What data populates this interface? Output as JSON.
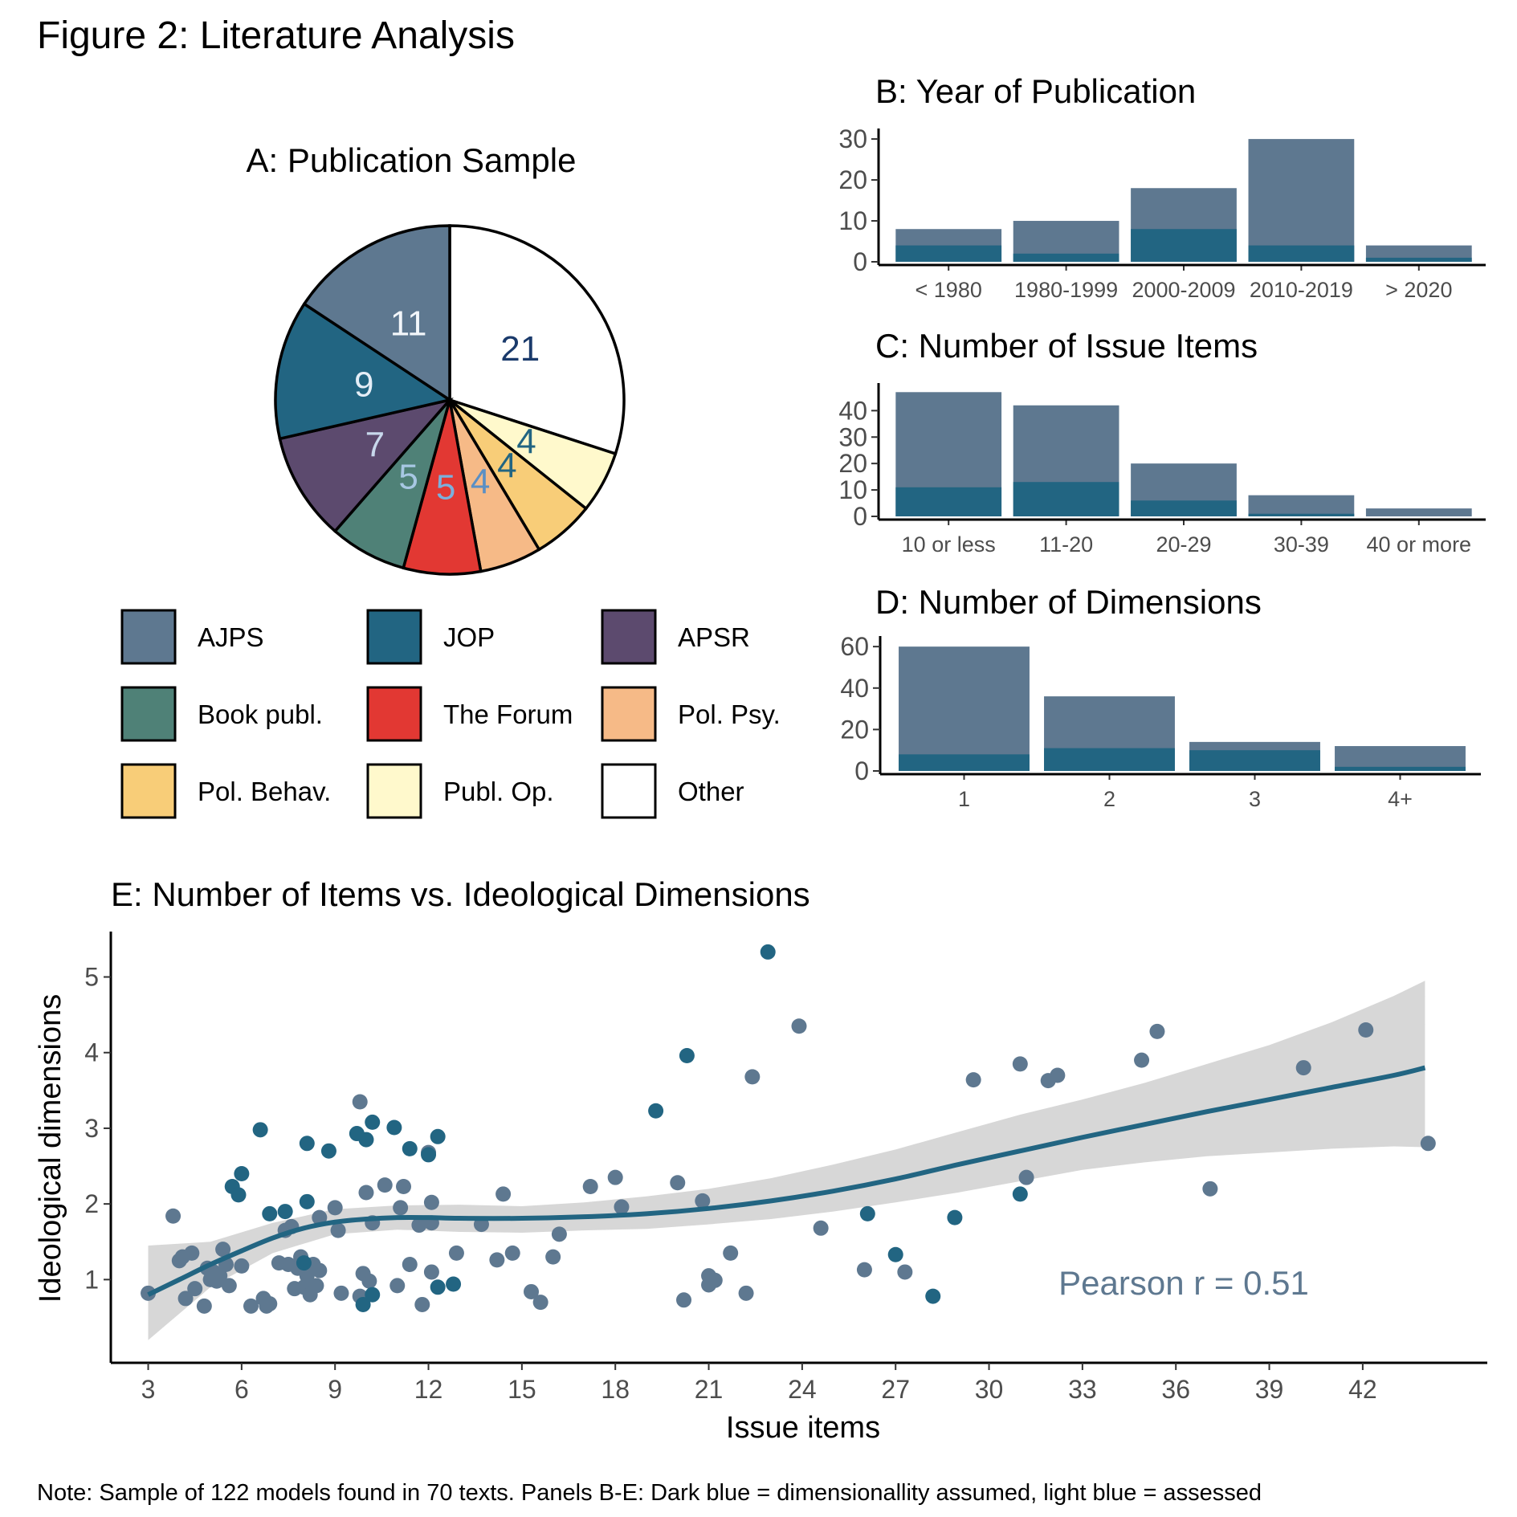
{
  "figure": {
    "title": "Figure 2: Literature Analysis",
    "note": "Note: Sample of 122 models found in 70 texts. Panels B-E: Dark blue = dimensionallity assumed, light blue = assessed"
  },
  "colors": {
    "assessed": "#5e7890",
    "assumed": "#226582",
    "smooth_line": "#226582",
    "ribbon": "#d3d3d3",
    "annotation": "#5e7890"
  },
  "chart_data": [
    {
      "id": "A",
      "type": "pie",
      "title": "A: Publication Sample",
      "slices": [
        {
          "label": "Other",
          "value": 21,
          "color": "#ffffff",
          "label_color": "#1a3a6b"
        },
        {
          "label": "Publ. Op.",
          "value": 4,
          "color": "#fff9cc",
          "label_color": "#226582"
        },
        {
          "label": "Pol. Behav.",
          "value": 4,
          "color": "#f8cd78",
          "label_color": "#226582"
        },
        {
          "label": "Pol. Psy.",
          "value": 4,
          "color": "#f6ba87",
          "label_color": "#5b8fc4"
        },
        {
          "label": "The Forum",
          "value": 5,
          "color": "#e23833",
          "label_color": "#7bb0dd"
        },
        {
          "label": "Book publ.",
          "value": 5,
          "color": "#4f8177",
          "label_color": "#a7c7e3"
        },
        {
          "label": "APSR",
          "value": 7,
          "color": "#5c4a6e",
          "label_color": "#c8d8ec"
        },
        {
          "label": "JOP",
          "value": 9,
          "color": "#226582",
          "label_color": "#e5eef7"
        },
        {
          "label": "AJPS",
          "value": 11,
          "color": "#5e7890",
          "label_color": "#f2f6fa"
        }
      ],
      "legend": [
        {
          "label": "AJPS",
          "color": "#5e7890"
        },
        {
          "label": "JOP",
          "color": "#226582"
        },
        {
          "label": "APSR",
          "color": "#5c4a6e"
        },
        {
          "label": "Book publ.",
          "color": "#4f8177"
        },
        {
          "label": "The Forum",
          "color": "#e23833"
        },
        {
          "label": "Pol. Psy.",
          "color": "#f6ba87"
        },
        {
          "label": "Pol. Behav.",
          "color": "#f8cd78"
        },
        {
          "label": "Publ. Op.",
          "color": "#fff9cc"
        },
        {
          "label": "Other",
          "color": "#ffffff"
        }
      ]
    },
    {
      "id": "B",
      "type": "bar",
      "title": "B: Year of Publication",
      "categories": [
        "< 1980",
        "1980-1999",
        "2000-2009",
        "2010-2019",
        "> 2020"
      ],
      "series": [
        {
          "name": "assessed",
          "values": [
            8,
            10,
            18,
            30,
            4
          ]
        },
        {
          "name": "assumed",
          "values": [
            4,
            2,
            8,
            4,
            1
          ]
        }
      ],
      "yticks": [
        0,
        10,
        20,
        30
      ],
      "ylim": [
        0,
        31
      ]
    },
    {
      "id": "C",
      "type": "bar",
      "title": "C: Number of Issue Items",
      "categories": [
        "10 or less",
        "11-20",
        "20-29",
        "30-39",
        "40 or more"
      ],
      "series": [
        {
          "name": "assessed",
          "values": [
            47,
            42,
            20,
            8,
            3
          ]
        },
        {
          "name": "assumed",
          "values": [
            11,
            13,
            6,
            1,
            0
          ]
        }
      ],
      "yticks": [
        0,
        10,
        20,
        30,
        40
      ],
      "ylim": [
        0,
        48
      ]
    },
    {
      "id": "D",
      "type": "bar",
      "title": "D: Number of Dimensions",
      "categories": [
        "1",
        "2",
        "3",
        "4+"
      ],
      "series": [
        {
          "name": "assessed",
          "values": [
            60,
            36,
            14,
            12
          ]
        },
        {
          "name": "assumed",
          "values": [
            8,
            11,
            10,
            2
          ]
        }
      ],
      "yticks": [
        0,
        20,
        40,
        60
      ],
      "ylim": [
        0,
        62
      ]
    },
    {
      "id": "E",
      "type": "scatter",
      "title": "E: Number of Items vs. Ideological Dimensions",
      "xlabel": "Issue items",
      "ylabel": "Ideological dimensions",
      "xlim": [
        1.8,
        46
      ],
      "ylim": [
        -0.1,
        5.6
      ],
      "xticks": [
        3,
        6,
        9,
        12,
        15,
        18,
        21,
        24,
        27,
        30,
        33,
        36,
        39,
        42
      ],
      "yticks": [
        1,
        2,
        3,
        4,
        5
      ],
      "annotation": "Pearson r = 0.51",
      "points_assessed": [
        [
          3.0,
          0.82
        ],
        [
          3.8,
          1.84
        ],
        [
          4.0,
          1.25
        ],
        [
          4.1,
          1.3
        ],
        [
          4.2,
          0.75
        ],
        [
          4.4,
          1.35
        ],
        [
          4.5,
          0.88
        ],
        [
          4.8,
          0.65
        ],
        [
          4.9,
          1.15
        ],
        [
          5.0,
          1.0
        ],
        [
          5.1,
          1.1
        ],
        [
          5.2,
          0.98
        ],
        [
          5.3,
          1.05
        ],
        [
          5.4,
          1.4
        ],
        [
          5.5,
          1.2
        ],
        [
          5.6,
          0.92
        ],
        [
          6.0,
          1.18
        ],
        [
          6.3,
          0.65
        ],
        [
          6.7,
          0.75
        ],
        [
          6.8,
          0.65
        ],
        [
          6.9,
          0.68
        ],
        [
          7.2,
          1.22
        ],
        [
          7.4,
          1.65
        ],
        [
          7.5,
          1.2
        ],
        [
          7.6,
          1.7
        ],
        [
          7.7,
          0.88
        ],
        [
          7.8,
          1.15
        ],
        [
          7.9,
          1.3
        ],
        [
          8.0,
          0.9
        ],
        [
          8.1,
          1.05
        ],
        [
          8.2,
          0.8
        ],
        [
          8.3,
          1.2
        ],
        [
          8.4,
          0.92
        ],
        [
          8.5,
          1.82
        ],
        [
          8.5,
          1.12
        ],
        [
          9.0,
          1.95
        ],
        [
          9.1,
          1.65
        ],
        [
          9.2,
          0.82
        ],
        [
          9.8,
          3.35
        ],
        [
          9.8,
          0.78
        ],
        [
          9.9,
          1.08
        ],
        [
          10.0,
          2.15
        ],
        [
          10.1,
          0.98
        ],
        [
          10.2,
          1.75
        ],
        [
          10.6,
          2.25
        ],
        [
          11.0,
          0.92
        ],
        [
          11.1,
          1.95
        ],
        [
          11.2,
          2.23
        ],
        [
          11.4,
          1.2
        ],
        [
          11.7,
          1.72
        ],
        [
          11.8,
          0.67
        ],
        [
          12.0,
          2.68
        ],
        [
          12.1,
          1.1
        ],
        [
          12.1,
          2.02
        ],
        [
          12.1,
          1.75
        ],
        [
          12.9,
          1.35
        ],
        [
          13.7,
          1.73
        ],
        [
          14.2,
          1.26
        ],
        [
          14.4,
          2.13
        ],
        [
          14.7,
          1.35
        ],
        [
          15.3,
          0.84
        ],
        [
          15.6,
          0.7
        ],
        [
          16.0,
          1.3
        ],
        [
          16.2,
          1.6
        ],
        [
          17.2,
          2.23
        ],
        [
          18.0,
          2.35
        ],
        [
          18.2,
          1.96
        ],
        [
          20.0,
          2.28
        ],
        [
          20.2,
          0.73
        ],
        [
          20.8,
          2.04
        ],
        [
          21.0,
          0.93
        ],
        [
          21.0,
          1.05
        ],
        [
          21.2,
          0.99
        ],
        [
          21.7,
          1.35
        ],
        [
          22.2,
          0.82
        ],
        [
          22.4,
          3.68
        ],
        [
          23.9,
          4.35
        ],
        [
          24.6,
          1.68
        ],
        [
          26.0,
          1.13
        ],
        [
          27.3,
          1.1
        ],
        [
          29.5,
          3.64
        ],
        [
          31.0,
          3.85
        ],
        [
          31.2,
          2.35
        ],
        [
          31.9,
          3.63
        ],
        [
          32.2,
          3.7
        ],
        [
          34.9,
          3.9
        ],
        [
          35.4,
          4.28
        ],
        [
          37.1,
          2.2
        ],
        [
          40.1,
          3.8
        ],
        [
          42.1,
          4.3
        ],
        [
          44.1,
          2.8
        ]
      ],
      "points_assumed": [
        [
          5.7,
          2.23
        ],
        [
          5.9,
          2.12
        ],
        [
          6.0,
          2.4
        ],
        [
          6.6,
          2.98
        ],
        [
          6.9,
          1.87
        ],
        [
          7.4,
          1.9
        ],
        [
          8.1,
          2.8
        ],
        [
          8.1,
          2.03
        ],
        [
          8.8,
          2.7
        ],
        [
          8.0,
          1.22
        ],
        [
          9.7,
          2.93
        ],
        [
          9.9,
          0.67
        ],
        [
          10.0,
          2.85
        ],
        [
          10.2,
          3.08
        ],
        [
          10.2,
          0.8
        ],
        [
          10.9,
          3.01
        ],
        [
          11.4,
          2.73
        ],
        [
          12.0,
          2.65
        ],
        [
          12.3,
          2.89
        ],
        [
          12.3,
          0.9
        ],
        [
          12.8,
          0.94
        ],
        [
          19.3,
          3.23
        ],
        [
          20.3,
          3.96
        ],
        [
          22.9,
          5.33
        ],
        [
          26.1,
          1.87
        ],
        [
          27.0,
          1.33
        ],
        [
          28.2,
          0.78
        ],
        [
          28.9,
          1.82
        ],
        [
          31.0,
          2.13
        ]
      ],
      "smooth": [
        [
          3,
          0.8
        ],
        [
          4,
          1.0
        ],
        [
          5,
          1.2
        ],
        [
          6,
          1.38
        ],
        [
          7,
          1.55
        ],
        [
          8,
          1.68
        ],
        [
          9,
          1.76
        ],
        [
          10,
          1.8
        ],
        [
          11,
          1.82
        ],
        [
          12,
          1.82
        ],
        [
          13,
          1.81
        ],
        [
          15,
          1.81
        ],
        [
          17,
          1.83
        ],
        [
          19,
          1.87
        ],
        [
          21,
          1.94
        ],
        [
          23,
          2.04
        ],
        [
          25,
          2.17
        ],
        [
          27,
          2.33
        ],
        [
          29,
          2.52
        ],
        [
          31,
          2.7
        ],
        [
          33,
          2.88
        ],
        [
          35,
          3.05
        ],
        [
          37,
          3.22
        ],
        [
          39,
          3.38
        ],
        [
          41,
          3.54
        ],
        [
          43,
          3.7
        ],
        [
          44,
          3.8
        ]
      ],
      "ribbon_upper": [
        [
          3,
          1.45
        ],
        [
          5,
          1.5
        ],
        [
          7,
          1.75
        ],
        [
          9,
          1.93
        ],
        [
          11,
          1.98
        ],
        [
          13,
          1.99
        ],
        [
          15,
          1.97
        ],
        [
          17,
          2.02
        ],
        [
          19,
          2.1
        ],
        [
          21,
          2.2
        ],
        [
          23,
          2.34
        ],
        [
          25,
          2.52
        ],
        [
          27,
          2.72
        ],
        [
          29,
          2.95
        ],
        [
          31,
          3.18
        ],
        [
          33,
          3.38
        ],
        [
          35,
          3.6
        ],
        [
          37,
          3.85
        ],
        [
          39,
          4.1
        ],
        [
          41,
          4.4
        ],
        [
          43,
          4.75
        ],
        [
          44,
          4.95
        ]
      ],
      "ribbon_lower": [
        [
          3,
          0.2
        ],
        [
          5,
          0.9
        ],
        [
          7,
          1.35
        ],
        [
          9,
          1.6
        ],
        [
          11,
          1.66
        ],
        [
          13,
          1.63
        ],
        [
          15,
          1.62
        ],
        [
          17,
          1.65
        ],
        [
          19,
          1.67
        ],
        [
          21,
          1.73
        ],
        [
          23,
          1.8
        ],
        [
          25,
          1.9
        ],
        [
          27,
          2.02
        ],
        [
          29,
          2.15
        ],
        [
          31,
          2.3
        ],
        [
          33,
          2.45
        ],
        [
          35,
          2.55
        ],
        [
          37,
          2.63
        ],
        [
          39,
          2.68
        ],
        [
          41,
          2.73
        ],
        [
          43,
          2.76
        ],
        [
          44,
          2.75
        ]
      ]
    }
  ]
}
